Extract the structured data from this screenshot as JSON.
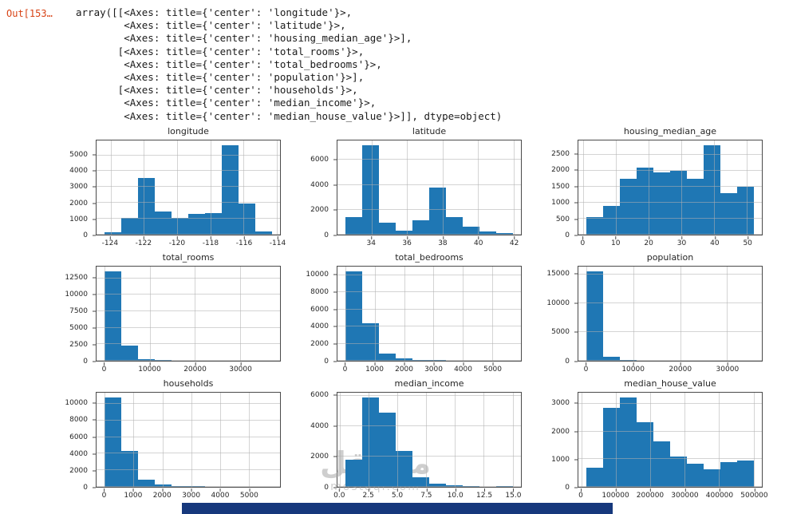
{
  "output": {
    "prompt": "Out[153…",
    "lines": [
      "array([[<Axes: title={'center': 'longitude'}>,",
      "        <Axes: title={'center': 'latitude'}>,",
      "        <Axes: title={'center': 'housing_median_age'}>],",
      "       [<Axes: title={'center': 'total_rooms'}>,",
      "        <Axes: title={'center': 'total_bedrooms'}>,",
      "        <Axes: title={'center': 'population'}>],",
      "       [<Axes: title={'center': 'households'}>,",
      "        <Axes: title={'center': 'median_income'}>,",
      "        <Axes: title={'center': 'median_house_value'}>]], dtype=object)"
    ]
  },
  "colors": {
    "bar": "#1f77b4",
    "prompt": "#d84315",
    "grid": "#b0b0b0",
    "spine": "#4a4a4a",
    "bottom_bar": "#16387c"
  },
  "watermark": {
    "text": "مستقل",
    "subtext": "mostaql.com"
  },
  "chart_data": [
    {
      "type": "bar",
      "title": "longitude",
      "bin_start": -124.35,
      "bin_end": -114.31,
      "values": [
        150,
        1050,
        3550,
        1450,
        1050,
        1300,
        1350,
        5650,
        1950,
        200
      ],
      "xlim": [
        -124.85,
        -113.81
      ],
      "xticks": [
        -124,
        -122,
        -120,
        -118,
        -116,
        -114
      ],
      "xtick_labels": [
        "-124",
        "-122",
        "-120",
        "-118",
        "-116",
        "-114"
      ],
      "ylim": [
        0,
        5930
      ],
      "yticks": [
        0,
        1000,
        2000,
        3000,
        4000,
        5000
      ],
      "grid": true,
      "legend": "none"
    },
    {
      "type": "bar",
      "title": "latitude",
      "bin_start": 32.54,
      "bin_end": 41.95,
      "values": [
        1400,
        7200,
        950,
        300,
        1150,
        3800,
        1400,
        650,
        250,
        150
      ],
      "xlim": [
        32.07,
        42.42
      ],
      "xticks": [
        34,
        36,
        38,
        40,
        42
      ],
      "xtick_labels": [
        "34",
        "36",
        "38",
        "40",
        "42"
      ],
      "ylim": [
        0,
        7560
      ],
      "yticks": [
        0,
        2000,
        4000,
        6000
      ],
      "grid": true,
      "legend": "none"
    },
    {
      "type": "bar",
      "title": "housing_median_age",
      "bin_start": 1,
      "bin_end": 52,
      "values": [
        550,
        900,
        1750,
        2100,
        1950,
        2000,
        1750,
        2800,
        1300,
        1500
      ],
      "xlim": [
        -1.55,
        54.55
      ],
      "xticks": [
        0,
        10,
        20,
        30,
        40,
        50
      ],
      "xtick_labels": [
        "0",
        "10",
        "20",
        "30",
        "40",
        "50"
      ],
      "ylim": [
        0,
        2940
      ],
      "yticks": [
        0,
        500,
        1000,
        1500,
        2000,
        2500
      ],
      "grid": true,
      "legend": "none"
    },
    {
      "type": "bar",
      "title": "total_rooms",
      "bin_start": 2,
      "bin_end": 37000,
      "values": [
        13600,
        2300,
        280,
        90,
        35,
        15,
        8,
        4,
        2,
        2
      ],
      "xlim": [
        -1848,
        38850
      ],
      "xticks": [
        0,
        10000,
        20000,
        30000
      ],
      "xtick_labels": [
        "0",
        "10000",
        "20000",
        "30000"
      ],
      "ylim": [
        0,
        14280
      ],
      "yticks": [
        0,
        2500,
        5000,
        7500,
        10000,
        12500
      ],
      "grid": true,
      "legend": "none"
    },
    {
      "type": "bar",
      "title": "total_bedrooms",
      "bin_start": 1,
      "bin_end": 5700,
      "values": [
        10500,
        4400,
        850,
        300,
        110,
        50,
        25,
        10,
        5,
        3
      ],
      "xlim": [
        -284,
        5985
      ],
      "xticks": [
        0,
        1000,
        2000,
        3000,
        4000,
        5000
      ],
      "xtick_labels": [
        "0",
        "1000",
        "2000",
        "3000",
        "4000",
        "5000"
      ],
      "ylim": [
        0,
        11025
      ],
      "yticks": [
        0,
        2000,
        4000,
        6000,
        8000,
        10000
      ],
      "grid": true,
      "legend": "none"
    },
    {
      "type": "bar",
      "title": "population",
      "bin_start": 3,
      "bin_end": 35682,
      "values": [
        15600,
        700,
        90,
        30,
        12,
        6,
        3,
        2,
        1,
        1
      ],
      "xlim": [
        -1781,
        37466
      ],
      "xticks": [
        0,
        10000,
        20000,
        30000
      ],
      "xtick_labels": [
        "0",
        "10000",
        "20000",
        "30000"
      ],
      "ylim": [
        0,
        16380
      ],
      "yticks": [
        0,
        5000,
        10000,
        15000
      ],
      "grid": true,
      "legend": "none"
    },
    {
      "type": "bar",
      "title": "households",
      "bin_start": 1,
      "bin_end": 5800,
      "values": [
        10800,
        4300,
        900,
        280,
        110,
        50,
        25,
        10,
        5,
        2
      ],
      "xlim": [
        -289,
        6090
      ],
      "xticks": [
        0,
        1000,
        2000,
        3000,
        4000,
        5000
      ],
      "xtick_labels": [
        "0",
        "1000",
        "2000",
        "3000",
        "4000",
        "5000"
      ],
      "ylim": [
        0,
        11340
      ],
      "yticks": [
        0,
        2000,
        4000,
        6000,
        8000,
        10000
      ],
      "grid": true,
      "legend": "none"
    },
    {
      "type": "bar",
      "title": "median_income",
      "bin_start": 0.5,
      "bin_end": 15.0,
      "values": [
        1800,
        5900,
        4900,
        2350,
        650,
        220,
        90,
        40,
        20,
        50
      ],
      "xlim": [
        -0.225,
        15.725
      ],
      "xticks": [
        0.0,
        2.5,
        5.0,
        7.5,
        10.0,
        12.5,
        15.0
      ],
      "xtick_labels": [
        "0.0",
        "2.5",
        "5.0",
        "7.5",
        "10.0",
        "12.5",
        "15.0"
      ],
      "ylim": [
        0,
        6195
      ],
      "yticks": [
        0,
        2000,
        4000,
        6000
      ],
      "grid": true,
      "legend": "none"
    },
    {
      "type": "bar",
      "title": "median_house_value",
      "bin_start": 15000,
      "bin_end": 500001,
      "values": [
        700,
        2850,
        3250,
        2350,
        1650,
        1100,
        850,
        650,
        900,
        950
      ],
      "xlim": [
        -9250,
        524251
      ],
      "xticks": [
        0,
        100000,
        200000,
        300000,
        400000,
        500000
      ],
      "xtick_labels": [
        "0",
        "100000",
        "200000",
        "300000",
        "400000",
        "500000"
      ],
      "ylim": [
        0,
        3410
      ],
      "yticks": [
        0,
        1000,
        2000,
        3000
      ],
      "grid": true,
      "legend": "none"
    }
  ]
}
